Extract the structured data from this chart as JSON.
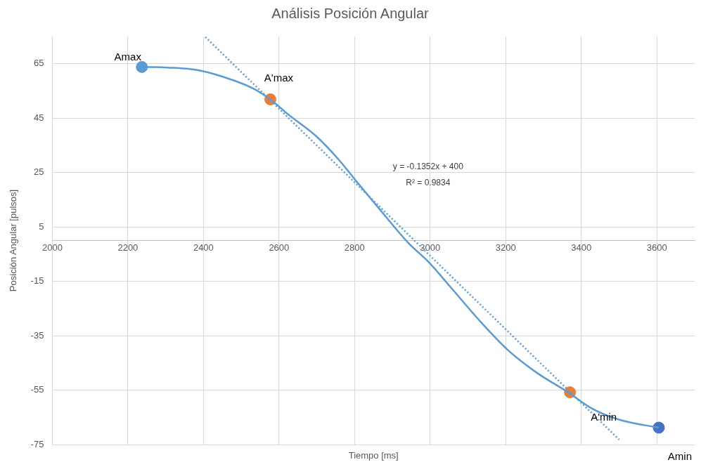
{
  "chart_data": {
    "type": "line",
    "title": "Análisis Posición Angular",
    "xlabel": "Tiempo [ms]",
    "ylabel": "Posición Angular [pulsos]",
    "xlim": [
      2000,
      3700
    ],
    "xticks": [
      2000,
      2200,
      2400,
      2600,
      2800,
      3000,
      3200,
      3400,
      3600
    ],
    "ylim": [
      -75,
      75
    ],
    "yticks": [
      -75,
      -55,
      -35,
      -15,
      5,
      25,
      45,
      65
    ],
    "grid": true,
    "legend": false,
    "series": [
      {
        "color": "#5b9bd5",
        "marker": "none",
        "line_style": "solid",
        "x": [
          2237,
          2304,
          2379,
          2454,
          2530,
          2577,
          2623,
          2698,
          2755,
          2811,
          2868,
          2943,
          2995,
          3055,
          3131,
          3206,
          3281,
          3365,
          3431,
          3506,
          3605
        ],
        "values": [
          63.8,
          63.6,
          62.8,
          60.1,
          56,
          51.9,
          46.5,
          38.4,
          30.2,
          20.7,
          11.2,
          -1,
          -7.8,
          -17.3,
          -29.5,
          -40.3,
          -48.5,
          -55.8,
          -62,
          -66.1,
          -68.8
        ]
      },
      {
        "type": "line",
        "color": "#5b9bd5",
        "marker": "none",
        "line_style": "dotted",
        "x": [
          2405,
          3500
        ],
        "values": [
          74.8,
          -73.2
        ]
      },
      {
        "type": "scatter",
        "marker": "circle",
        "x": [
          2237,
          2577,
          3370,
          3605
        ],
        "values": [
          63.8,
          51.9,
          -55.8,
          -68.8
        ],
        "colors": [
          "#5b9bd5",
          "#ed7d31",
          "#ed7d31",
          "#4472c4"
        ]
      }
    ],
    "annotations": [
      {
        "text": "Amax",
        "x": 2237,
        "y": 63.8
      },
      {
        "text": "A'max",
        "x": 2577,
        "y": 51.9
      },
      {
        "text": "A'min",
        "x": 3370,
        "y": -55.8
      },
      {
        "text": "Amin",
        "x": 3605,
        "y": -68.8
      },
      "y = -0.1352x + 400",
      "R² = 0.9834"
    ]
  }
}
